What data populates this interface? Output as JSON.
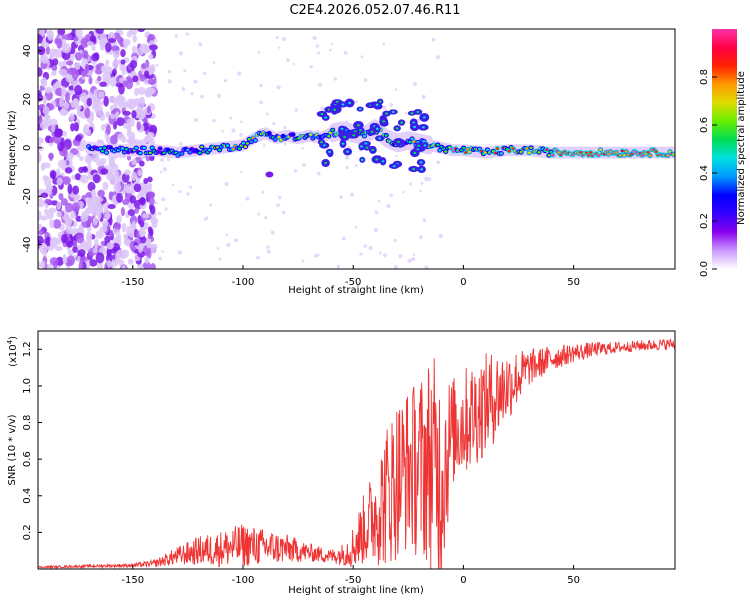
{
  "title": "C2E4.2026.052.07.46.R11",
  "chart_data": [
    {
      "type": "heatmap",
      "xlabel": "Height of straight line (km)",
      "ylabel": "Frequency (Hz)",
      "xlim": [
        -193,
        96
      ],
      "ylim": [
        -50,
        49
      ],
      "xticks": [
        -150,
        -100,
        -50,
        0,
        50
      ],
      "yticks": [
        -40,
        -20,
        0,
        20,
        40
      ],
      "grid": false,
      "colorbar": {
        "label": "Normalized spectral amplitude",
        "range": [
          0,
          1
        ],
        "ticks": [
          "0.0",
          "0.2",
          "0.4",
          "0.6",
          "0.8"
        ],
        "colors": [
          "#ffffff",
          "#cc99ff",
          "#8800ee",
          "#3300ff",
          "#0000ff",
          "#0099ff",
          "#00e0e0",
          "#00dd55",
          "#66ee00",
          "#dddd00",
          "#ff9900",
          "#ff2200",
          "#ff0044",
          "#ff33aa"
        ]
      },
      "ridge": {
        "x": [
          -170,
          -160,
          -150,
          -140,
          -130,
          -120,
          -110,
          -100,
          -95,
          -90,
          -85,
          -80,
          -75,
          -70,
          -65,
          -60,
          -55,
          -50,
          -45,
          -40,
          -35,
          -30,
          -25,
          -20,
          -15,
          -10,
          -5,
          0,
          10,
          20,
          30,
          40,
          50,
          60,
          70,
          80,
          90,
          96
        ],
        "y": [
          0,
          -1,
          -1,
          -1,
          -2,
          -1,
          0,
          1,
          4,
          6,
          4,
          5,
          4,
          5,
          4,
          6,
          7,
          6,
          5,
          8,
          4,
          2,
          3,
          2,
          1,
          0,
          -1,
          -1,
          -2,
          -1,
          -1,
          -2,
          -2,
          -2,
          -2,
          -2,
          -2,
          -2
        ]
      },
      "noise_region_x": [
        -193,
        -140
      ]
    },
    {
      "type": "line",
      "xlabel": "Height of straight line (km)",
      "ylabel": "SNR (10 * v/v)",
      "yscale_label": "(x10",
      "yscale_exp": "4",
      "xlim": [
        -193,
        96
      ],
      "ylim": [
        0,
        1.3
      ],
      "xticks": [
        -150,
        -100,
        -50,
        0,
        50
      ],
      "yticks": [
        0.2,
        0.4,
        0.6,
        0.8,
        1.0,
        1.2
      ],
      "yticklabels": [
        "0.2",
        "0.4",
        "0.6",
        "0.8",
        "1.0",
        "1.2"
      ],
      "grid": false,
      "series": [
        {
          "color": "#ee3333",
          "envelope": {
            "x": [
              -193,
              -150,
              -140,
              -130,
              -120,
              -110,
              -100,
              -90,
              -80,
              -70,
              -60,
              -55,
              -50,
              -45,
              -40,
              -35,
              -30,
              -25,
              -20,
              -15,
              -10,
              -5,
              0,
              5,
              10,
              15,
              20,
              25,
              30,
              40,
              50,
              60,
              70,
              80,
              96
            ],
            "mean": [
              0.01,
              0.02,
              0.03,
              0.07,
              0.1,
              0.11,
              0.13,
              0.12,
              0.11,
              0.09,
              0.07,
              0.08,
              0.12,
              0.22,
              0.3,
              0.4,
              0.5,
              0.55,
              0.55,
              0.6,
              0.5,
              0.75,
              0.8,
              0.85,
              0.9,
              0.95,
              1.0,
              1.05,
              1.1,
              1.15,
              1.18,
              1.2,
              1.21,
              1.22,
              1.23
            ],
            "amp": [
              0.005,
              0.01,
              0.02,
              0.05,
              0.08,
              0.1,
              0.12,
              0.1,
              0.08,
              0.05,
              0.04,
              0.06,
              0.12,
              0.2,
              0.28,
              0.4,
              0.45,
              0.45,
              0.5,
              0.6,
              0.6,
              0.3,
              0.3,
              0.3,
              0.28,
              0.25,
              0.2,
              0.15,
              0.1,
              0.07,
              0.05,
              0.04,
              0.03,
              0.03,
              0.03
            ]
          }
        }
      ]
    }
  ]
}
